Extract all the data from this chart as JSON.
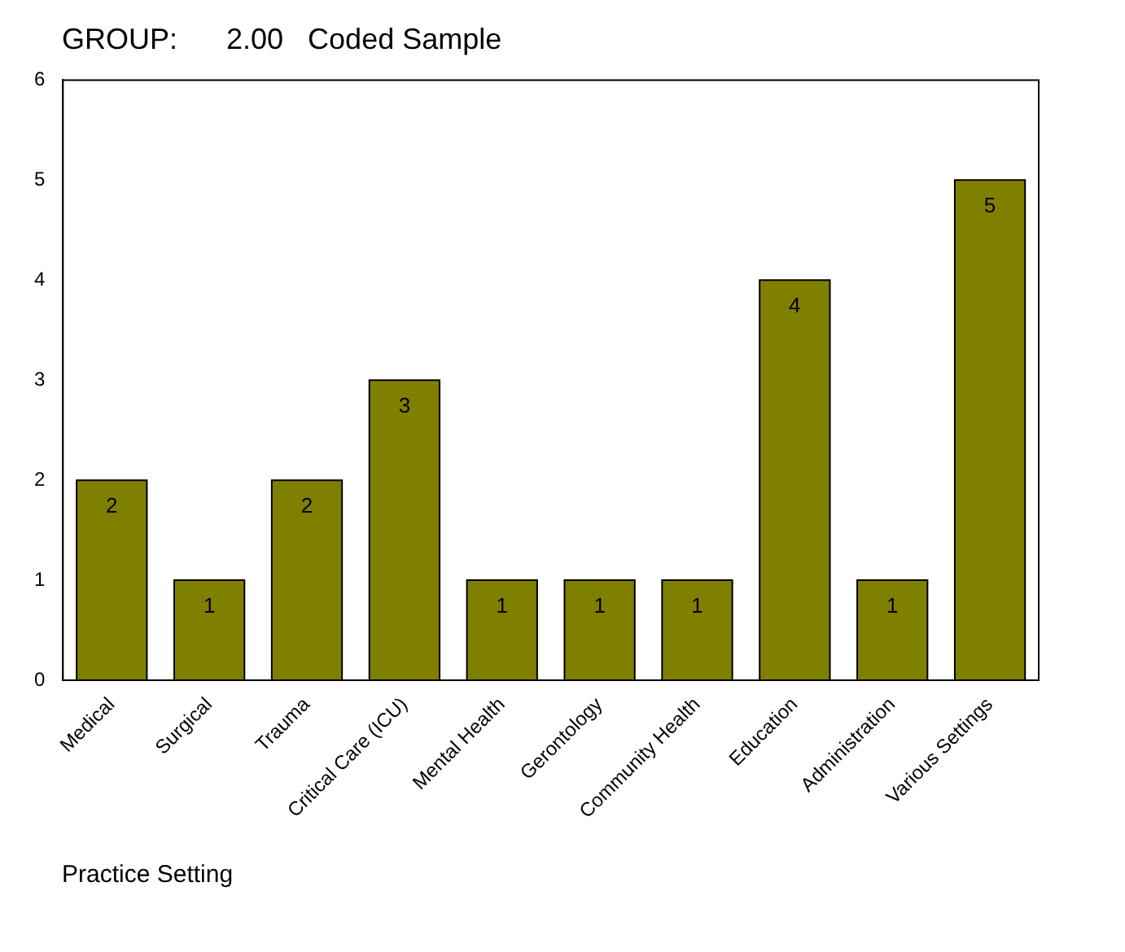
{
  "chart_data": {
    "type": "bar",
    "title": "GROUP:      2.00   Coded Sample",
    "xlabel": "Practice Setting",
    "categories": [
      "Medical",
      "Surgical",
      "Trauma",
      "Critical Care (ICU)",
      "Mental Health",
      "Gerontology",
      "Community Health",
      "Education",
      "Administration",
      "Various Settings"
    ],
    "values": [
      2,
      1,
      2,
      3,
      1,
      1,
      1,
      4,
      1,
      5
    ],
    "color": "#808000",
    "ylim": [
      0,
      6
    ],
    "yticks": [
      0,
      1,
      2,
      3,
      4,
      5,
      6
    ],
    "grid": false,
    "legend": false,
    "data_labels": true
  }
}
